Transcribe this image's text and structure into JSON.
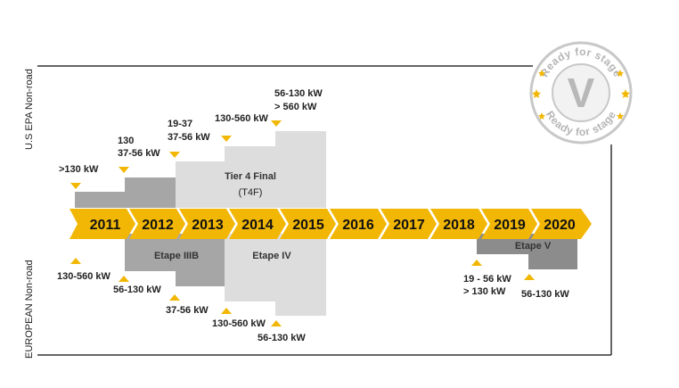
{
  "colors": {
    "arrow": "#F2B705",
    "marker": "#F2B705",
    "dark_gray": "#8C8C8C",
    "mid_gray": "#A6A6A6",
    "light_gray": "#D9D9D9",
    "lighter_gray": "#E6E6E6",
    "epa_t4f": "#DDDDDD",
    "line": "#333333"
  },
  "side_labels": {
    "us": "U.S EPA Non-road",
    "eu": "EUROPEAN Non-road"
  },
  "years": [
    "2011",
    "2012",
    "2013",
    "2014",
    "2015",
    "2016",
    "2017",
    "2018",
    "2019",
    "2020"
  ],
  "tier4": {
    "title": "Tier 4 Final",
    "subtitle": "(T4F)"
  },
  "eu_stages": {
    "etape3b": "Etape IIIB",
    "etape4": "Etape IV",
    "etape5": "Etape V"
  },
  "us_labels": {
    "l2011": ">130 kW",
    "l2012a": "130",
    "l2012b": "37-56 kW",
    "l2013a": "19-37",
    "l2013b": "37-56 kW",
    "l2014": "130-560 kW",
    "l2015a": "56-130 kW",
    "l2015b": "> 560 kW"
  },
  "eu_labels": {
    "l2011": "130-560 kW",
    "l2012": "56-130 kW",
    "l2013": "37-56 kW",
    "l2014": "130-560 kW",
    "l2015": "56-130 kW",
    "l2019a": "19 - 56 kW",
    "l2019b": "> 130 kW",
    "l2020": "56-130 kW"
  },
  "badge": {
    "top_text": "Ready for stage",
    "bottom_text": "Ready for stage",
    "center": "V"
  }
}
